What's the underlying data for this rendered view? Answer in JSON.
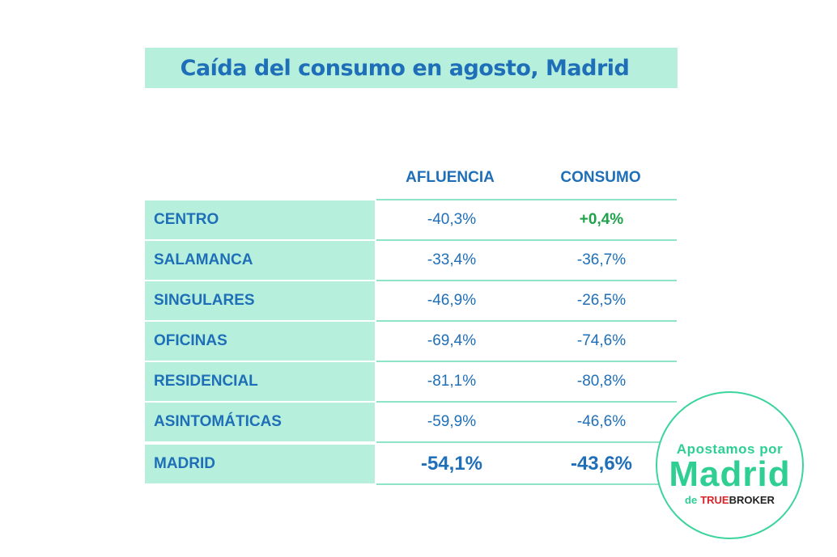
{
  "title": "Caída del consumo en agosto, Madrid",
  "columns": [
    "AFLUENCIA",
    "CONSUMO"
  ],
  "rows": [
    {
      "label": "CENTRO",
      "afluencia": "-40,3%",
      "consumo": "+0,4%"
    },
    {
      "label": "SALAMANCA",
      "afluencia": "-33,4%",
      "consumo": "-36,7%"
    },
    {
      "label": "SINGULARES",
      "afluencia": "-46,9%",
      "consumo": "-26,5%"
    },
    {
      "label": "OFICINAS",
      "afluencia": "-69,4%",
      "consumo": "-74,6%"
    },
    {
      "label": "RESIDENCIAL",
      "afluencia": "-81,1%",
      "consumo": "-80,8%"
    },
    {
      "label": "ASINTOMÁTICAS",
      "afluencia": "-59,9%",
      "consumo": "-46,6%"
    },
    {
      "label": "MADRID",
      "afluencia": "-54,1%",
      "consumo": "-43,6%"
    }
  ],
  "badge": {
    "line1": "Apostamos por",
    "line2": "Madrid",
    "de": "de",
    "brand_true": "TRUE",
    "brand_broker": "BROKER"
  },
  "colors": {
    "accent_blue": "#1f6fb8",
    "mint": "#b6efdc",
    "positive_green": "#1fa24a",
    "badge_green": "#2fcf93"
  }
}
